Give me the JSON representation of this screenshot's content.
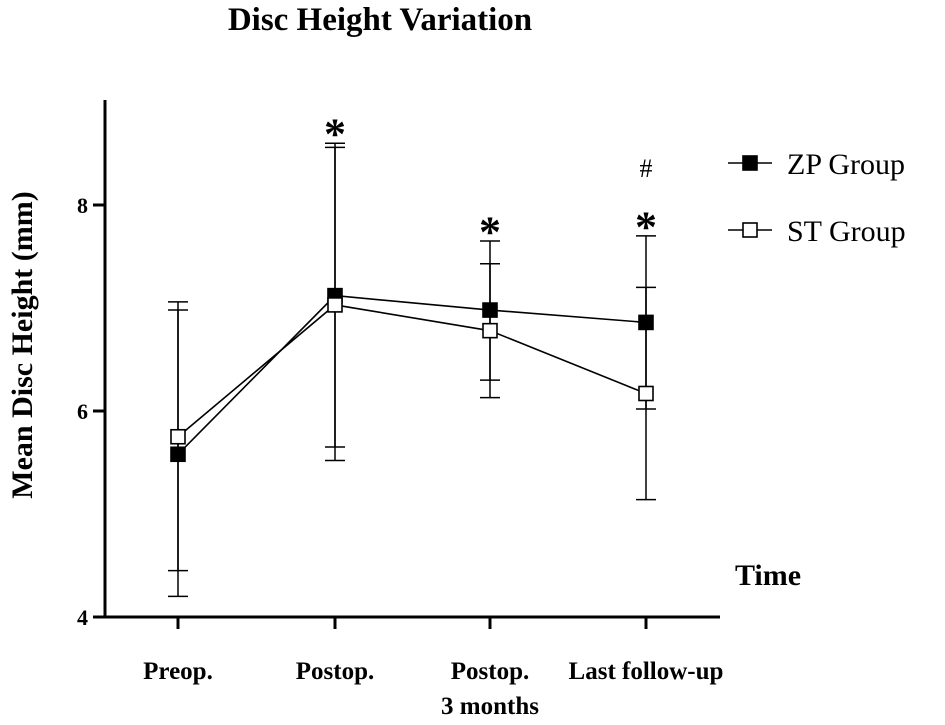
{
  "chart_data": {
    "type": "line",
    "title": "Disc Height Variation",
    "ylabel": "Mean Disc Height (mm)",
    "xlabel": "Time",
    "categories": [
      {
        "lines": [
          "Preop."
        ]
      },
      {
        "lines": [
          "Postop."
        ]
      },
      {
        "lines": [
          "Postop.",
          "3 months"
        ]
      },
      {
        "lines": [
          "Last follow-up"
        ]
      }
    ],
    "ylim": [
      4,
      9
    ],
    "yticks": [
      4,
      6,
      8
    ],
    "grid": false,
    "legend_position": "top-right",
    "series": [
      {
        "name": "ZP Group",
        "marker": "filled-square",
        "values": [
          5.58,
          7.12,
          6.98,
          6.86
        ],
        "err_low": [
          4.2,
          5.65,
          6.3,
          6.02
        ],
        "err_high": [
          7.06,
          8.6,
          7.65,
          7.7
        ]
      },
      {
        "name": "ST Group",
        "marker": "open-square",
        "values": [
          5.75,
          7.03,
          6.78,
          6.17
        ],
        "err_low": [
          4.45,
          5.52,
          6.13,
          5.14
        ],
        "err_high": [
          6.98,
          8.56,
          7.43,
          7.2
        ]
      }
    ],
    "annotations": [
      {
        "category_index": 1,
        "symbol": "*",
        "y": 8.8
      },
      {
        "category_index": 2,
        "symbol": "*",
        "y": 7.85
      },
      {
        "category_index": 3,
        "symbol": "*",
        "y": 7.9
      },
      {
        "category_index": 3,
        "symbol": "#",
        "y": 8.35
      }
    ]
  }
}
